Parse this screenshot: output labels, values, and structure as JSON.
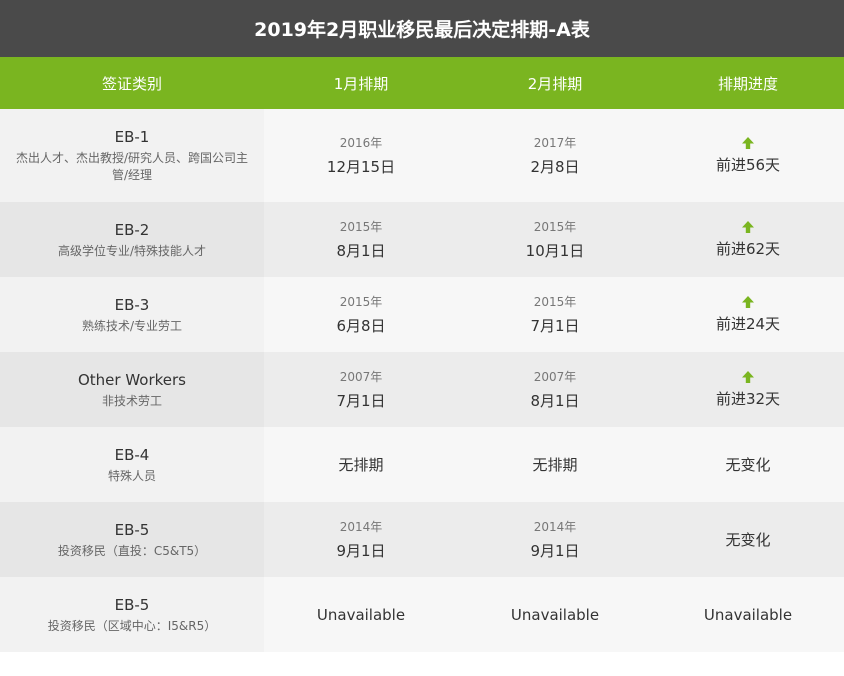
{
  "title": "2019年2月职业移民最后决定排期-A表",
  "headers": [
    "签证类别",
    "1月排期",
    "2月排期",
    "排期进度"
  ],
  "colors": {
    "title_bg": "#4a4a4a",
    "header_bg": "#7ab520",
    "arrow": "#7ab520"
  },
  "rows": [
    {
      "code": "EB-1",
      "desc": "杰出人才、杰出教授/研究人员、跨国公司主管/经理",
      "jan": {
        "year": "2016年",
        "date": "12月15日"
      },
      "feb": {
        "year": "2017年",
        "date": "2月8日"
      },
      "progress": {
        "icon": "arrow-up-icon",
        "text": "前进56天"
      }
    },
    {
      "code": "EB-2",
      "desc": "高级学位专业/特殊技能人才",
      "jan": {
        "year": "2015年",
        "date": "8月1日"
      },
      "feb": {
        "year": "2015年",
        "date": "10月1日"
      },
      "progress": {
        "icon": "arrow-up-icon",
        "text": "前进62天"
      }
    },
    {
      "code": "EB-3",
      "desc": "熟练技术/专业劳工",
      "jan": {
        "year": "2015年",
        "date": "6月8日"
      },
      "feb": {
        "year": "2015年",
        "date": "7月1日"
      },
      "progress": {
        "icon": "arrow-up-icon",
        "text": "前进24天"
      }
    },
    {
      "code": "Other Workers",
      "desc": "非技术劳工",
      "jan": {
        "year": "2007年",
        "date": "7月1日"
      },
      "feb": {
        "year": "2007年",
        "date": "8月1日"
      },
      "progress": {
        "icon": "arrow-up-icon",
        "text": "前进32天"
      }
    },
    {
      "code": "EB-4",
      "desc": "特殊人员",
      "jan": {
        "text": "无排期"
      },
      "feb": {
        "text": "无排期"
      },
      "progress": {
        "text": "无变化"
      }
    },
    {
      "code": "EB-5",
      "desc": "投资移民（直投：C5&T5）",
      "jan": {
        "year": "2014年",
        "date": "9月1日"
      },
      "feb": {
        "year": "2014年",
        "date": "9月1日"
      },
      "progress": {
        "text": "无变化"
      }
    },
    {
      "code": "EB-5",
      "desc": "投资移民（区域中心：I5&R5）",
      "jan": {
        "text": "Unavailable"
      },
      "feb": {
        "text": "Unavailable"
      },
      "progress": {
        "text": "Unavailable"
      }
    }
  ]
}
